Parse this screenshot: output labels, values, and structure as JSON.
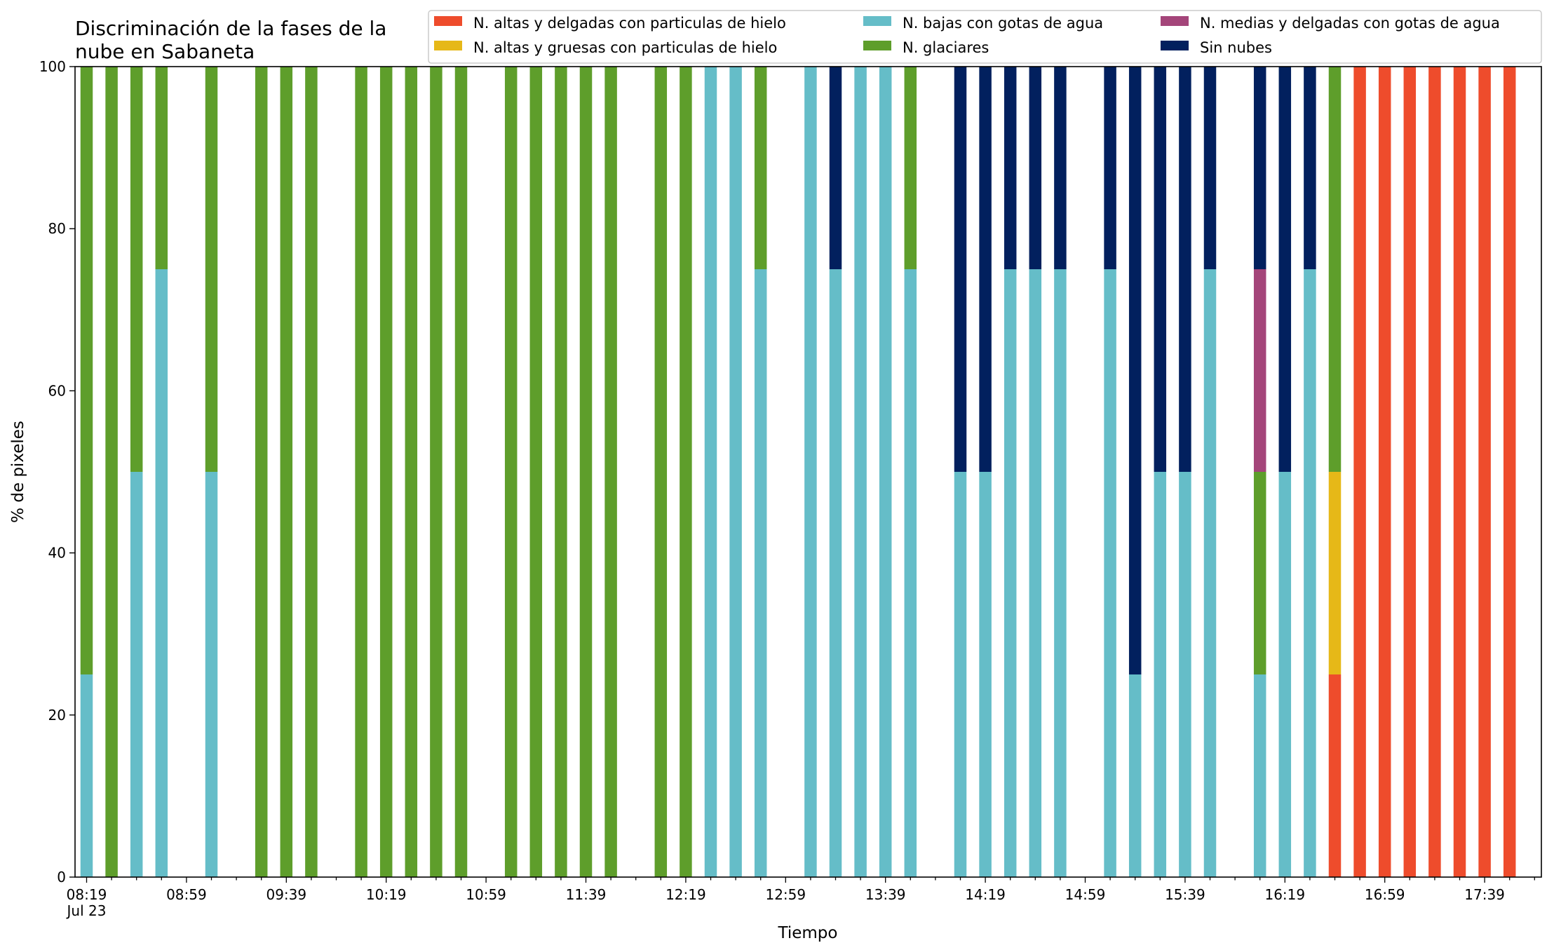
{
  "chart_data": {
    "type": "bar",
    "stacked": true,
    "title_lines": [
      "Discriminación de la fases de la",
      "nube en Sabaneta"
    ],
    "xlabel": "Tiempo",
    "ylabel": "% de pixeles",
    "ylim": [
      0,
      100
    ],
    "yticks": [
      0,
      20,
      40,
      60,
      80,
      100
    ],
    "grid": false,
    "legend_position": "top-right",
    "x_start": "08:19",
    "x_interval_minutes": 10,
    "x_count": 60,
    "major_ticks": [
      {
        "index": 0,
        "label": "08:19",
        "sublabel": "Jul 23"
      },
      {
        "index": 4,
        "label": "08:59"
      },
      {
        "index": 8,
        "label": "09:39"
      },
      {
        "index": 12,
        "label": "10:19"
      },
      {
        "index": 16,
        "label": "10:59"
      },
      {
        "index": 20,
        "label": "11:39"
      },
      {
        "index": 24,
        "label": "12:19"
      },
      {
        "index": 28,
        "label": "12:59"
      },
      {
        "index": 32,
        "label": "13:39"
      },
      {
        "index": 36,
        "label": "14:19"
      },
      {
        "index": 40,
        "label": "14:59"
      },
      {
        "index": 44,
        "label": "15:39"
      },
      {
        "index": 48,
        "label": "16:19"
      },
      {
        "index": 52,
        "label": "16:59"
      },
      {
        "index": 56,
        "label": "17:39"
      }
    ],
    "series": [
      {
        "key": "altas_delgadas",
        "name": "N. altas y delgadas con particulas de hielo",
        "color": "#ee4c2c"
      },
      {
        "key": "altas_gruesas",
        "name": "N. altas y gruesas con particulas de hielo",
        "color": "#e6b818"
      },
      {
        "key": "bajas",
        "name": "N. bajas con gotas de agua",
        "color": "#65bdc8"
      },
      {
        "key": "glaciares",
        "name": "N. glaciares",
        "color": "#5e9e2b"
      },
      {
        "key": "medias",
        "name": "N. medias y delgadas con gotas de agua",
        "color": "#a4457a"
      },
      {
        "key": "sin_nubes",
        "name": "Sin nubes",
        "color": "#02205e"
      }
    ],
    "bars": [
      {
        "i": 0,
        "time": "08:19",
        "bajas": 25,
        "glaciares": 75
      },
      {
        "i": 1,
        "time": "08:29",
        "glaciares": 100
      },
      {
        "i": 2,
        "time": "08:39",
        "bajas": 50,
        "glaciares": 50
      },
      {
        "i": 3,
        "time": "08:49",
        "bajas": 75,
        "glaciares": 25
      },
      {
        "i": 5,
        "time": "09:09",
        "bajas": 50,
        "glaciares": 50
      },
      {
        "i": 7,
        "time": "09:29",
        "glaciares": 100
      },
      {
        "i": 8,
        "time": "09:39",
        "glaciares": 100
      },
      {
        "i": 9,
        "time": "09:49",
        "glaciares": 100
      },
      {
        "i": 11,
        "time": "10:09",
        "glaciares": 100
      },
      {
        "i": 12,
        "time": "10:19",
        "glaciares": 100
      },
      {
        "i": 13,
        "time": "10:29",
        "glaciares": 100
      },
      {
        "i": 14,
        "time": "10:39",
        "glaciares": 100
      },
      {
        "i": 15,
        "time": "10:49",
        "glaciares": 100
      },
      {
        "i": 17,
        "time": "11:09",
        "glaciares": 100
      },
      {
        "i": 18,
        "time": "11:19",
        "glaciares": 100
      },
      {
        "i": 19,
        "time": "11:29",
        "glaciares": 100
      },
      {
        "i": 20,
        "time": "11:39",
        "glaciares": 100
      },
      {
        "i": 21,
        "time": "11:49",
        "glaciares": 100
      },
      {
        "i": 23,
        "time": "12:09",
        "glaciares": 100
      },
      {
        "i": 24,
        "time": "12:19",
        "glaciares": 100
      },
      {
        "i": 25,
        "time": "12:29",
        "bajas": 100
      },
      {
        "i": 26,
        "time": "12:39",
        "bajas": 100
      },
      {
        "i": 27,
        "time": "12:49",
        "bajas": 75,
        "glaciares": 25
      },
      {
        "i": 29,
        "time": "13:09",
        "bajas": 100
      },
      {
        "i": 30,
        "time": "13:19",
        "bajas": 75,
        "sin_nubes": 25
      },
      {
        "i": 31,
        "time": "13:29",
        "bajas": 100
      },
      {
        "i": 32,
        "time": "13:39",
        "bajas": 100
      },
      {
        "i": 33,
        "time": "13:49",
        "bajas": 75,
        "glaciares": 25
      },
      {
        "i": 35,
        "time": "14:09",
        "bajas": 50,
        "sin_nubes": 50
      },
      {
        "i": 36,
        "time": "14:19",
        "bajas": 50,
        "sin_nubes": 50
      },
      {
        "i": 37,
        "time": "14:29",
        "bajas": 75,
        "sin_nubes": 25
      },
      {
        "i": 38,
        "time": "14:39",
        "bajas": 75,
        "sin_nubes": 25
      },
      {
        "i": 39,
        "time": "14:49",
        "bajas": 75,
        "sin_nubes": 25
      },
      {
        "i": 41,
        "time": "15:09",
        "bajas": 75,
        "sin_nubes": 25
      },
      {
        "i": 42,
        "time": "15:19",
        "bajas": 25,
        "sin_nubes": 75
      },
      {
        "i": 43,
        "time": "15:29",
        "bajas": 50,
        "sin_nubes": 50
      },
      {
        "i": 44,
        "time": "15:39",
        "bajas": 50,
        "sin_nubes": 50
      },
      {
        "i": 45,
        "time": "15:49",
        "bajas": 75,
        "sin_nubes": 25
      },
      {
        "i": 47,
        "time": "16:09",
        "bajas": 25,
        "glaciares": 25,
        "medias": 25,
        "sin_nubes": 25
      },
      {
        "i": 48,
        "time": "16:19",
        "bajas": 50,
        "sin_nubes": 50
      },
      {
        "i": 49,
        "time": "16:29",
        "bajas": 75,
        "sin_nubes": 25
      },
      {
        "i": 50,
        "time": "16:39",
        "altas_delgadas": 25,
        "altas_gruesas": 25,
        "glaciares": 50
      },
      {
        "i": 51,
        "time": "16:49",
        "altas_delgadas": 100
      },
      {
        "i": 52,
        "time": "16:59",
        "altas_delgadas": 100
      },
      {
        "i": 53,
        "time": "17:09",
        "altas_delgadas": 100
      },
      {
        "i": 54,
        "time": "17:19",
        "altas_delgadas": 100
      },
      {
        "i": 55,
        "time": "17:29",
        "altas_delgadas": 100
      },
      {
        "i": 56,
        "time": "17:39",
        "altas_delgadas": 100
      },
      {
        "i": 57,
        "time": "17:49",
        "altas_delgadas": 100
      }
    ]
  }
}
